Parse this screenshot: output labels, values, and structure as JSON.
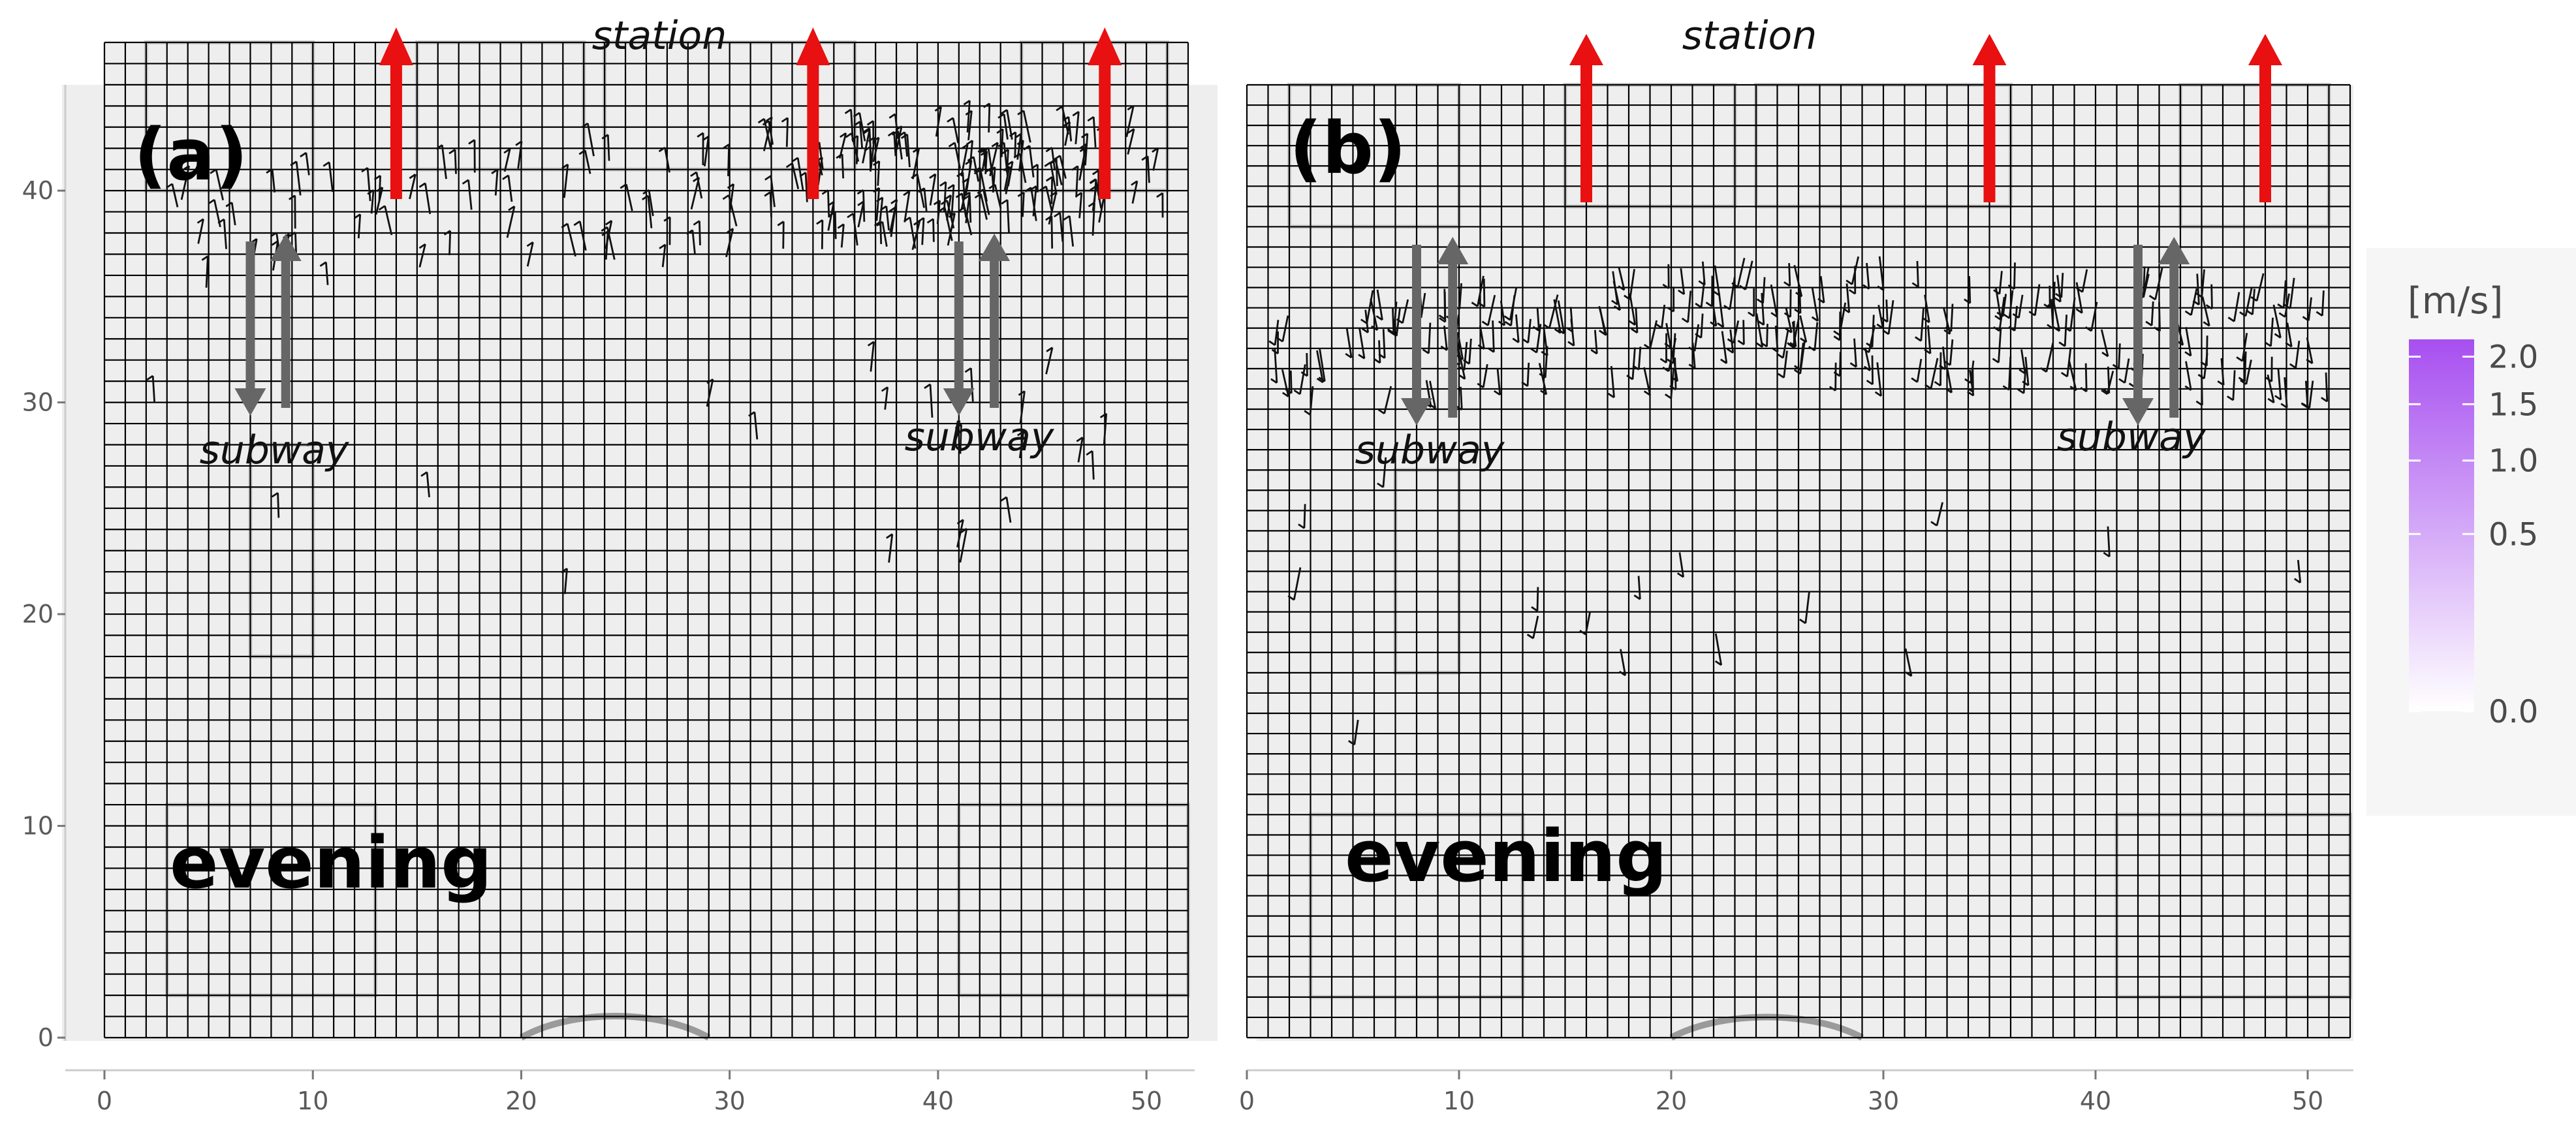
{
  "chart_data": {
    "type": "heatmap",
    "colors": {
      "low": "#ffffff",
      "high": "#a74ff0",
      "alt": "#8fc5e8",
      "background": "#eeeeee",
      "arrow_red": "#e81010",
      "arrow_gray": "#666666",
      "grid": "#000000"
    },
    "legend": {
      "title": "[m/s]",
      "ticks": [
        {
          "label": "2.0",
          "value": 2.0
        },
        {
          "label": "1.5",
          "value": 1.5
        },
        {
          "label": "1.0",
          "value": 1.0
        },
        {
          "label": "0.5",
          "value": 0.5
        },
        {
          "label": "0.0",
          "value": 0.0
        }
      ],
      "range": [
        0.0,
        2.2
      ]
    },
    "panels": [
      {
        "tag": "(a)",
        "time_label": "evening",
        "station_label": "station",
        "subway_label": "subway",
        "xlim": [
          0,
          52
        ],
        "ylim": [
          0,
          47
        ],
        "x_ticks": [
          "0",
          "10",
          "20",
          "30",
          "40",
          "50"
        ],
        "y_ticks": [
          "0",
          "10",
          "20",
          "30",
          "40"
        ],
        "station_arrow_x": [
          14,
          34,
          48
        ],
        "subway_arrow_x": [
          7,
          41
        ],
        "dense_band": [
          [
            6,
            38
          ],
          [
            25,
            39
          ],
          [
            40,
            40
          ]
        ]
      },
      {
        "tag": "(b)",
        "time_label": "evening",
        "station_label": "station",
        "subway_label": "subway",
        "xlim": [
          0,
          52
        ],
        "ylim": [
          0,
          47
        ],
        "x_ticks": [
          "0",
          "10",
          "20",
          "30",
          "40",
          "50"
        ],
        "y_ticks": [],
        "station_arrow_x": [
          16,
          35,
          48
        ],
        "subway_arrow_x": [
          8,
          42
        ],
        "dense_band": [
          [
            0,
            34
          ],
          [
            25,
            36
          ],
          [
            50,
            35
          ]
        ]
      }
    ]
  }
}
